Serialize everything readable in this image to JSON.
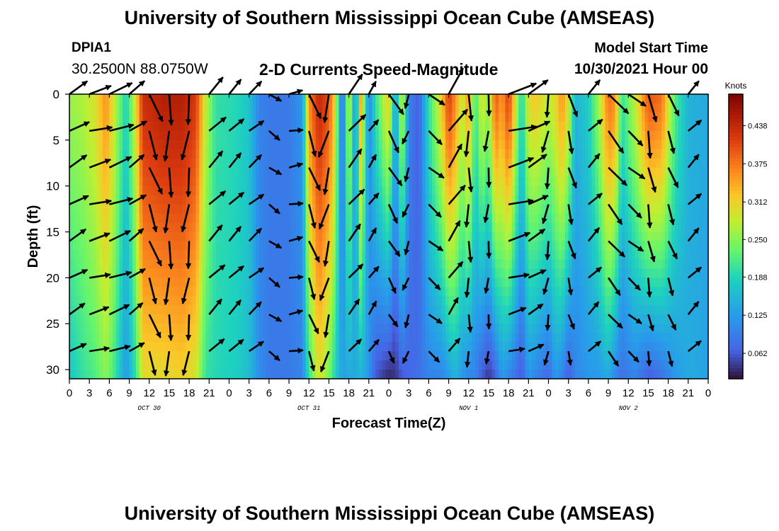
{
  "page": {
    "title": "University of Southern Mississippi Ocean Cube (AMSEAS)",
    "title_repeat": "University of Southern Mississippi Ocean Cube (AMSEAS)",
    "station_id": "DPIA1",
    "station_coords": "30.2500N  88.0750W",
    "chart_title": "2-D Currents Speed-Magnitude",
    "model_start_label": "Model Start Time",
    "model_start_value": "10/30/2021 Hour 00"
  },
  "chart_data": {
    "type": "heatmap",
    "title": "2-D Currents Speed-Magnitude",
    "xlabel": "Forecast Time(Z)",
    "ylabel": "Depth (ft)",
    "x_tick_labels": [
      "0",
      "3",
      "6",
      "9",
      "12",
      "15",
      "18",
      "21",
      "0",
      "3",
      "6",
      "9",
      "12",
      "15",
      "18",
      "21",
      "0",
      "3",
      "6",
      "9",
      "12",
      "15",
      "18",
      "21",
      "0",
      "3",
      "6",
      "9",
      "12",
      "15",
      "18",
      "21",
      "0"
    ],
    "x_range_hours": [
      0,
      96
    ],
    "day_labels": [
      {
        "label": "OCT 30",
        "hour": 12
      },
      {
        "label": "OCT 31",
        "hour": 36
      },
      {
        "label": "NOV 1",
        "hour": 60
      },
      {
        "label": "NOV 2",
        "hour": 84
      }
    ],
    "y_ticks": [
      0,
      5,
      10,
      15,
      20,
      25,
      30
    ],
    "y_range_ft": [
      0,
      31
    ],
    "colorbar": {
      "unit": "Knots",
      "ticks": [
        "0.438",
        "0.375",
        "0.312",
        "0.250",
        "0.188",
        "0.125",
        "0.062"
      ],
      "range": [
        0.02,
        0.49
      ]
    },
    "speed_by_hour": [
      {
        "hour": 0,
        "surface": 0.26,
        "bottom": 0.17
      },
      {
        "hour": 2,
        "surface": 0.27,
        "bottom": 0.2
      },
      {
        "hour": 4,
        "surface": 0.3,
        "bottom": 0.22
      },
      {
        "hour": 5.5,
        "surface": 0.36,
        "bottom": 0.25
      },
      {
        "hour": 7,
        "surface": 0.27,
        "bottom": 0.2
      },
      {
        "hour": 8.5,
        "surface": 0.18,
        "bottom": 0.12
      },
      {
        "hour": 10,
        "surface": 0.3,
        "bottom": 0.2
      },
      {
        "hour": 11,
        "surface": 0.43,
        "bottom": 0.3
      },
      {
        "hour": 14,
        "surface": 0.45,
        "bottom": 0.3
      },
      {
        "hour": 17,
        "surface": 0.45,
        "bottom": 0.31
      },
      {
        "hour": 19,
        "surface": 0.42,
        "bottom": 0.29
      },
      {
        "hour": 20.5,
        "surface": 0.28,
        "bottom": 0.2
      },
      {
        "hour": 22,
        "surface": 0.2,
        "bottom": 0.19
      },
      {
        "hour": 25,
        "surface": 0.19,
        "bottom": 0.18
      },
      {
        "hour": 27,
        "surface": 0.17,
        "bottom": 0.16
      },
      {
        "hour": 28.5,
        "surface": 0.1,
        "bottom": 0.11
      },
      {
        "hour": 30,
        "surface": 0.09,
        "bottom": 0.09
      },
      {
        "hour": 33,
        "surface": 0.09,
        "bottom": 0.09
      },
      {
        "hour": 35,
        "surface": 0.12,
        "bottom": 0.1
      },
      {
        "hour": 36,
        "surface": 0.36,
        "bottom": 0.2
      },
      {
        "hour": 37.5,
        "surface": 0.44,
        "bottom": 0.3
      },
      {
        "hour": 39,
        "surface": 0.4,
        "bottom": 0.24
      },
      {
        "hour": 40,
        "surface": 0.3,
        "bottom": 0.18
      },
      {
        "hour": 41,
        "surface": 0.05,
        "bottom": 0.13
      },
      {
        "hour": 42,
        "surface": 0.3,
        "bottom": 0.14
      },
      {
        "hour": 43,
        "surface": 0.1,
        "bottom": 0.14
      },
      {
        "hour": 43.8,
        "surface": 0.35,
        "bottom": 0.15
      },
      {
        "hour": 45,
        "surface": 0.1,
        "bottom": 0.12
      },
      {
        "hour": 46,
        "surface": 0.2,
        "bottom": 0.06
      },
      {
        "hour": 48,
        "surface": 0.32,
        "bottom": 0.03
      },
      {
        "hour": 49,
        "surface": 0.12,
        "bottom": 0.04
      },
      {
        "hour": 50,
        "surface": 0.3,
        "bottom": 0.06
      },
      {
        "hour": 51,
        "surface": 0.1,
        "bottom": 0.07
      },
      {
        "hour": 52.5,
        "surface": 0.06,
        "bottom": 0.08
      },
      {
        "hour": 54,
        "surface": 0.2,
        "bottom": 0.1
      },
      {
        "hour": 56,
        "surface": 0.32,
        "bottom": 0.1
      },
      {
        "hour": 57,
        "surface": 0.42,
        "bottom": 0.12
      },
      {
        "hour": 58,
        "surface": 0.36,
        "bottom": 0.15
      },
      {
        "hour": 59,
        "surface": 0.28,
        "bottom": 0.12
      },
      {
        "hour": 60,
        "surface": 0.36,
        "bottom": 0.1
      },
      {
        "hour": 61,
        "surface": 0.2,
        "bottom": 0.1
      },
      {
        "hour": 62,
        "surface": 0.3,
        "bottom": 0.06
      },
      {
        "hour": 63,
        "surface": 0.25,
        "bottom": 0.04
      },
      {
        "hour": 64,
        "surface": 0.4,
        "bottom": 0.06
      },
      {
        "hour": 65,
        "surface": 0.35,
        "bottom": 0.12
      },
      {
        "hour": 66,
        "surface": 0.42,
        "bottom": 0.1
      },
      {
        "hour": 67,
        "surface": 0.3,
        "bottom": 0.08
      },
      {
        "hour": 68,
        "surface": 0.18,
        "bottom": 0.06
      },
      {
        "hour": 69,
        "surface": 0.3,
        "bottom": 0.12
      },
      {
        "hour": 70,
        "surface": 0.32,
        "bottom": 0.1
      },
      {
        "hour": 72,
        "surface": 0.28,
        "bottom": 0.07
      },
      {
        "hour": 73,
        "surface": 0.3,
        "bottom": 0.12
      },
      {
        "hour": 74,
        "surface": 0.36,
        "bottom": 0.1
      },
      {
        "hour": 75,
        "surface": 0.3,
        "bottom": 0.06
      },
      {
        "hour": 76,
        "surface": 0.15,
        "bottom": 0.1
      },
      {
        "hour": 78,
        "surface": 0.18,
        "bottom": 0.12
      },
      {
        "hour": 79.5,
        "surface": 0.26,
        "bottom": 0.12
      },
      {
        "hour": 81,
        "surface": 0.38,
        "bottom": 0.14
      },
      {
        "hour": 82,
        "surface": 0.36,
        "bottom": 0.1
      },
      {
        "hour": 83,
        "surface": 0.2,
        "bottom": 0.08
      },
      {
        "hour": 85,
        "surface": 0.28,
        "bottom": 0.1
      },
      {
        "hour": 87,
        "surface": 0.4,
        "bottom": 0.06
      },
      {
        "hour": 89,
        "surface": 0.38,
        "bottom": 0.08
      },
      {
        "hour": 90,
        "surface": 0.3,
        "bottom": 0.1
      },
      {
        "hour": 91,
        "surface": 0.22,
        "bottom": 0.12
      },
      {
        "hour": 93,
        "surface": 0.15,
        "bottom": 0.14
      },
      {
        "hour": 96,
        "surface": 0.14,
        "bottom": 0.13
      }
    ],
    "vector_depths_ft": [
      0,
      4,
      8,
      12,
      16,
      20,
      24,
      28
    ],
    "vector_direction_deg_by_hour": [
      {
        "hour": 0,
        "dir": 60
      },
      {
        "hour": 3,
        "dir": 75
      },
      {
        "hour": 6,
        "dir": 70
      },
      {
        "hour": 9,
        "dir": 55
      },
      {
        "hour": 12,
        "dir": 160
      },
      {
        "hour": 15,
        "dir": 182
      },
      {
        "hour": 18,
        "dir": 188
      },
      {
        "hour": 21,
        "dir": 45
      },
      {
        "hour": 24,
        "dir": 45
      },
      {
        "hour": 27,
        "dir": 50
      },
      {
        "hour": 30,
        "dir": 125
      },
      {
        "hour": 33,
        "dir": 80
      },
      {
        "hour": 36,
        "dir": 160
      },
      {
        "hour": 39,
        "dir": 195
      },
      {
        "hour": 42,
        "dir": 40
      },
      {
        "hour": 45,
        "dir": 35
      },
      {
        "hour": 48,
        "dir": 150
      },
      {
        "hour": 51,
        "dir": 200
      },
      {
        "hour": 54,
        "dir": 130
      },
      {
        "hour": 57,
        "dir": 35
      },
      {
        "hour": 60,
        "dir": 180
      },
      {
        "hour": 63,
        "dir": 185
      },
      {
        "hour": 66,
        "dir": 75
      },
      {
        "hour": 69,
        "dir": 60
      },
      {
        "hour": 72,
        "dir": 190
      },
      {
        "hour": 75,
        "dir": 165
      },
      {
        "hour": 78,
        "dir": 45
      },
      {
        "hour": 81,
        "dir": 140
      },
      {
        "hour": 84,
        "dir": 130
      },
      {
        "hour": 87,
        "dir": 170
      },
      {
        "hour": 90,
        "dir": 160
      },
      {
        "hour": 93,
        "dir": 45
      }
    ]
  }
}
